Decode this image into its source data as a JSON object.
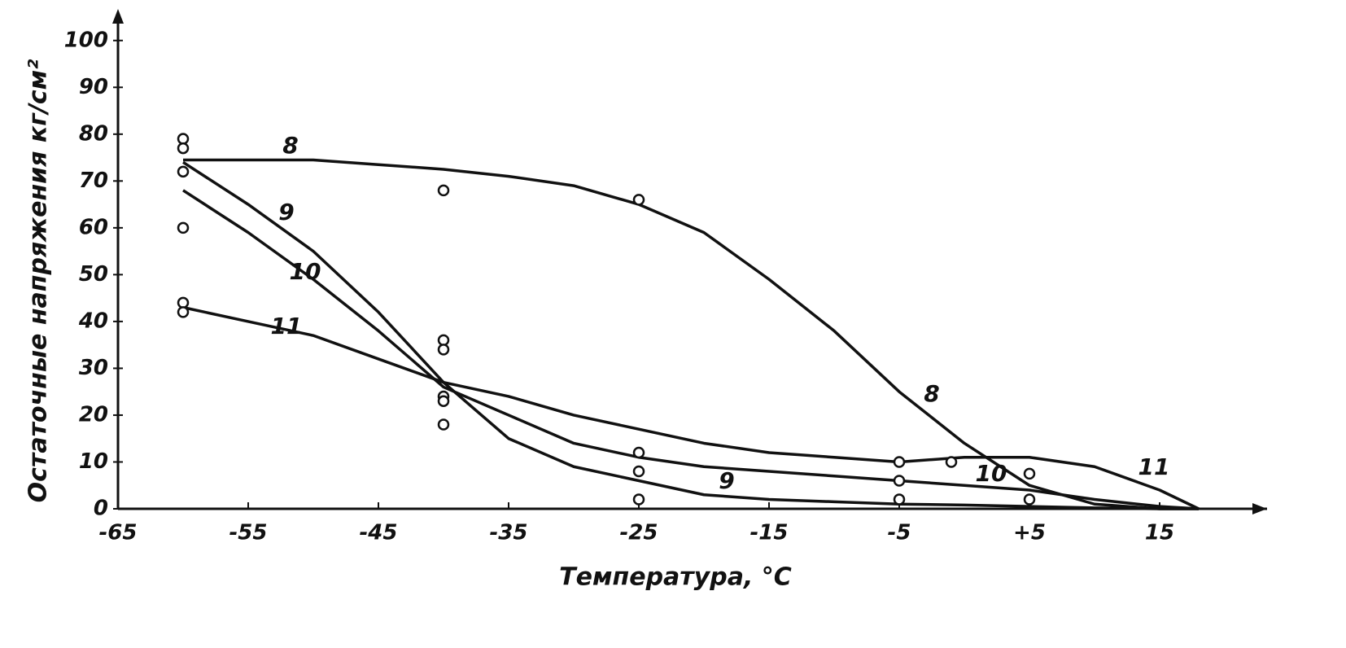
{
  "chart_data": {
    "type": "line",
    "xlabel": "Температура, °С",
    "ylabel": "Остаточные напряжения кг/см²",
    "x": [
      -60,
      -55,
      -50,
      -45,
      -40,
      -35,
      -30,
      -25,
      -20,
      -15,
      -10,
      -5,
      0,
      5,
      10,
      15,
      18
    ],
    "series": [
      {
        "name": "8",
        "color": "#111111",
        "values": [
          74.5,
          74.5,
          74.5,
          73.5,
          72.5,
          71,
          69,
          65,
          59,
          49,
          38,
          25,
          14,
          5,
          1,
          0,
          0
        ]
      },
      {
        "name": "9",
        "color": "#111111",
        "values": [
          74,
          65,
          55,
          42,
          27,
          15,
          9,
          6,
          3,
          2,
          1.5,
          1,
          0.8,
          0.5,
          0.2,
          0,
          0
        ]
      },
      {
        "name": "10",
        "color": "#111111",
        "values": [
          68,
          59,
          49,
          38,
          26,
          20,
          14,
          11,
          9,
          8,
          7,
          6,
          5,
          4,
          2,
          0.5,
          0
        ]
      },
      {
        "name": "11",
        "color": "#111111",
        "values": [
          43,
          40,
          37,
          32,
          27,
          24,
          20,
          17,
          14,
          12,
          11,
          10,
          11,
          11,
          9,
          4,
          0
        ]
      }
    ],
    "points": {
      "x": [
        -60,
        -60,
        -60,
        -60,
        -60,
        -60,
        -40,
        -40,
        -40,
        -40,
        -40,
        -40,
        -25,
        -25,
        -25,
        -25,
        -5,
        -5,
        -5,
        -1,
        5,
        5
      ],
      "y": [
        79,
        77,
        72,
        60,
        44,
        42,
        68,
        36,
        34,
        24,
        23,
        18,
        66,
        12,
        8,
        2,
        10,
        6,
        2,
        10,
        7.5,
        2
      ]
    },
    "xlim": [
      -65,
      22
    ],
    "ylim": [
      0,
      105
    ],
    "xticks": [
      -65,
      -55,
      -45,
      -35,
      -25,
      -15,
      -5,
      {
        "value": 5,
        "label": "+5"
      },
      15
    ],
    "yticks": [
      0,
      10,
      20,
      30,
      40,
      50,
      60,
      70,
      80,
      90,
      100
    ]
  }
}
